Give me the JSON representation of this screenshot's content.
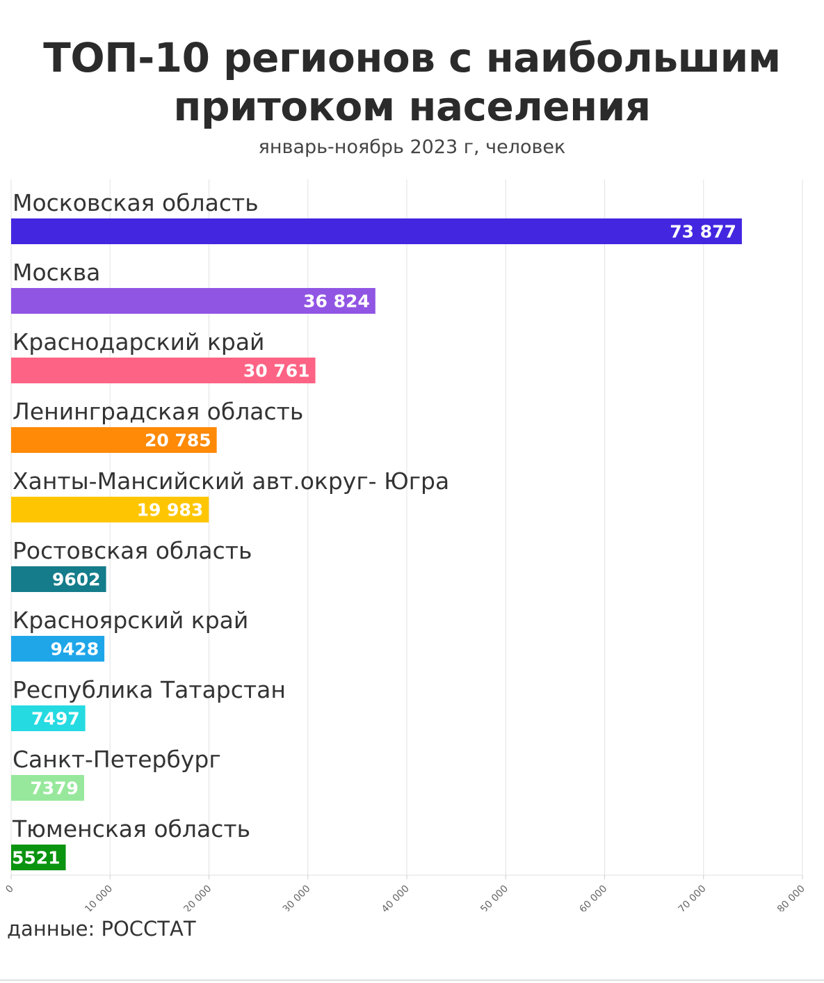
{
  "title_line1": "ТОП-10 регионов с наибольшим",
  "title_line2": "притоком населения",
  "subtitle": "январь-ноябрь 2023 г, человек",
  "source": "данные: РОССТАТ",
  "chart_data": {
    "type": "bar",
    "orientation": "horizontal",
    "categories": [
      "Московская область",
      "Москва",
      "Краснодарский край",
      "Ленинградская область",
      "Ханты-Мансийский авт.округ- Югра",
      "Ростовская область",
      "Красноярский край",
      "Республика Татарстан",
      "Санкт-Петербург",
      "Тюменская область"
    ],
    "values": [
      73877,
      36824,
      30761,
      20785,
      19983,
      9602,
      9428,
      7497,
      7379,
      5521
    ],
    "value_labels": [
      "73 877",
      "36 824",
      "30 761",
      "20 785",
      "19 983",
      "9602",
      "9428",
      "7497",
      "7379",
      "5521"
    ],
    "colors": [
      "#4326e0",
      "#9155e4",
      "#fd6384",
      "#fe8a07",
      "#fec602",
      "#157c8b",
      "#1fa6e9",
      "#25dae1",
      "#97e89c",
      "#0a9410"
    ],
    "xlim": [
      0,
      80000
    ],
    "ticks": [
      0,
      10000,
      20000,
      30000,
      40000,
      50000,
      60000,
      70000,
      80000
    ],
    "tick_labels": [
      "0",
      "10 000",
      "20 000",
      "30 000",
      "40 000",
      "50 000",
      "60 000",
      "70 000",
      "80 000"
    ],
    "grid": true
  }
}
